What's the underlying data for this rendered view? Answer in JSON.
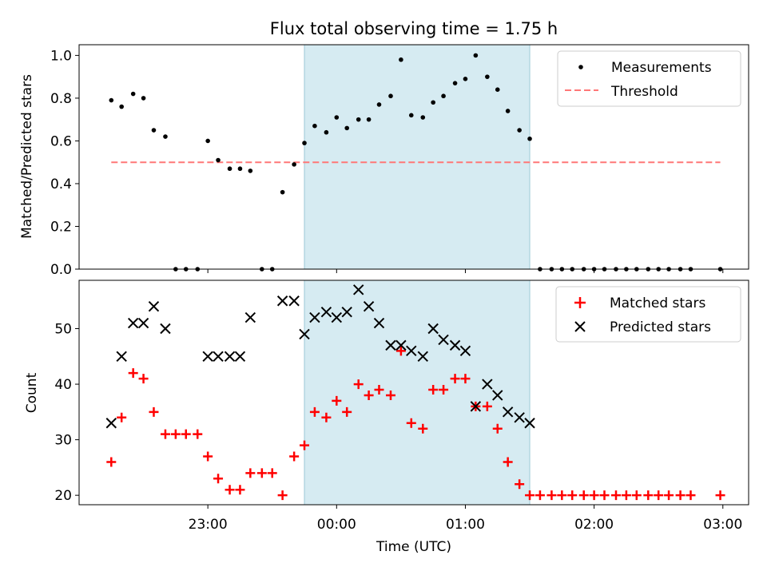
{
  "chart_data": [
    {
      "type": "scatter",
      "title": "Flux total observing time = 1.75 h",
      "xlabel": "",
      "ylabel": "Matched/Predicted stars",
      "ylim": [
        0,
        1.05
      ],
      "xlim_hours": [
        -2.0,
        3.2
      ],
      "yticks": [
        0,
        0.2,
        0.4,
        0.6,
        0.8,
        1.0
      ],
      "ytick_labels": [
        "0.0",
        "0.2",
        "0.4",
        "0.6",
        "0.8",
        "1.0"
      ],
      "shaded_region_hours": [
        -0.25,
        1.5
      ],
      "shade_color": "#add8e6",
      "legend_position": "top-right",
      "legend": [
        "Measurements",
        "Threshold"
      ],
      "threshold": {
        "name": "Threshold",
        "value": 0.5,
        "x_range_hours": [
          -1.75,
          2.98
        ],
        "color": "#ff7777"
      },
      "series": [
        {
          "name": "Measurements",
          "color": "#000000",
          "points": [
            [
              -1.75,
              0.79
            ],
            [
              -1.67,
              0.76
            ],
            [
              -1.58,
              0.82
            ],
            [
              -1.5,
              0.8
            ],
            [
              -1.42,
              0.65
            ],
            [
              -1.33,
              0.62
            ],
            [
              -1.25,
              0.0
            ],
            [
              -1.17,
              0.0
            ],
            [
              -1.08,
              0.0
            ],
            [
              -1.0,
              0.6
            ],
            [
              -0.92,
              0.51
            ],
            [
              -0.83,
              0.47
            ],
            [
              -0.75,
              0.47
            ],
            [
              -0.67,
              0.46
            ],
            [
              -0.58,
              0.0
            ],
            [
              -0.5,
              0.0
            ],
            [
              -0.42,
              0.36
            ],
            [
              -0.33,
              0.49
            ],
            [
              -0.25,
              0.59
            ],
            [
              -0.17,
              0.67
            ],
            [
              -0.08,
              0.64
            ],
            [
              0.0,
              0.71
            ],
            [
              0.08,
              0.66
            ],
            [
              0.17,
              0.7
            ],
            [
              0.25,
              0.7
            ],
            [
              0.33,
              0.77
            ],
            [
              0.42,
              0.81
            ],
            [
              0.5,
              0.98
            ],
            [
              0.58,
              0.72
            ],
            [
              0.67,
              0.71
            ],
            [
              0.75,
              0.78
            ],
            [
              0.83,
              0.81
            ],
            [
              0.92,
              0.87
            ],
            [
              1.0,
              0.89
            ],
            [
              1.08,
              1.0
            ],
            [
              1.17,
              0.9
            ],
            [
              1.25,
              0.84
            ],
            [
              1.33,
              0.74
            ],
            [
              1.42,
              0.65
            ],
            [
              1.5,
              0.61
            ],
            [
              1.58,
              0.0
            ],
            [
              1.67,
              0.0
            ],
            [
              1.75,
              0.0
            ],
            [
              1.83,
              0.0
            ],
            [
              1.92,
              0.0
            ],
            [
              2.0,
              0.0
            ],
            [
              2.08,
              0.0
            ],
            [
              2.17,
              0.0
            ],
            [
              2.25,
              0.0
            ],
            [
              2.33,
              0.0
            ],
            [
              2.42,
              0.0
            ],
            [
              2.5,
              0.0
            ],
            [
              2.58,
              0.0
            ],
            [
              2.67,
              0.0
            ],
            [
              2.75,
              0.0
            ],
            [
              2.98,
              0.0
            ]
          ]
        }
      ]
    },
    {
      "type": "scatter",
      "title": "",
      "xlabel": "Time (UTC)",
      "ylabel": "Count",
      "ylim": [
        18.3,
        58.7
      ],
      "xlim_hours": [
        -2.0,
        3.2
      ],
      "yticks": [
        20,
        30,
        40,
        50
      ],
      "ytick_labels": [
        "20",
        "30",
        "40",
        "50"
      ],
      "xticks_hours": [
        -1,
        0,
        1,
        2,
        3
      ],
      "xtick_labels": [
        "23:00",
        "00:00",
        "01:00",
        "02:00",
        "03:00"
      ],
      "shaded_region_hours": [
        -0.25,
        1.5
      ],
      "legend_position": "top-right",
      "legend": [
        "Matched stars",
        "Predicted stars"
      ],
      "series": [
        {
          "name": "Matched stars",
          "marker": "plus",
          "color": "#ff0000",
          "points": [
            [
              -1.75,
              26
            ],
            [
              -1.67,
              34
            ],
            [
              -1.58,
              42
            ],
            [
              -1.5,
              41
            ],
            [
              -1.42,
              35
            ],
            [
              -1.33,
              31
            ],
            [
              -1.25,
              31
            ],
            [
              -1.17,
              31
            ],
            [
              -1.08,
              31
            ],
            [
              -1.0,
              27
            ],
            [
              -0.92,
              23
            ],
            [
              -0.83,
              21
            ],
            [
              -0.75,
              21
            ],
            [
              -0.67,
              24
            ],
            [
              -0.58,
              24
            ],
            [
              -0.5,
              24
            ],
            [
              -0.42,
              20
            ],
            [
              -0.33,
              27
            ],
            [
              -0.25,
              29
            ],
            [
              -0.17,
              35
            ],
            [
              -0.08,
              34
            ],
            [
              0.0,
              37
            ],
            [
              0.08,
              35
            ],
            [
              0.17,
              40
            ],
            [
              0.25,
              38
            ],
            [
              0.33,
              39
            ],
            [
              0.42,
              38
            ],
            [
              0.5,
              46
            ],
            [
              0.58,
              33
            ],
            [
              0.67,
              32
            ],
            [
              0.75,
              39
            ],
            [
              0.83,
              39
            ],
            [
              0.92,
              41
            ],
            [
              1.0,
              41
            ],
            [
              1.08,
              36
            ],
            [
              1.17,
              36
            ],
            [
              1.25,
              32
            ],
            [
              1.33,
              26
            ],
            [
              1.42,
              22
            ],
            [
              1.5,
              20
            ],
            [
              1.58,
              20
            ],
            [
              1.67,
              20
            ],
            [
              1.75,
              20
            ],
            [
              1.83,
              20
            ],
            [
              1.92,
              20
            ],
            [
              2.0,
              20
            ],
            [
              2.08,
              20
            ],
            [
              2.17,
              20
            ],
            [
              2.25,
              20
            ],
            [
              2.33,
              20
            ],
            [
              2.42,
              20
            ],
            [
              2.5,
              20
            ],
            [
              2.58,
              20
            ],
            [
              2.67,
              20
            ],
            [
              2.75,
              20
            ],
            [
              2.98,
              20
            ]
          ]
        },
        {
          "name": "Predicted stars",
          "marker": "x",
          "color": "#000000",
          "points": [
            [
              -1.75,
              33
            ],
            [
              -1.67,
              45
            ],
            [
              -1.58,
              51
            ],
            [
              -1.5,
              51
            ],
            [
              -1.42,
              54
            ],
            [
              -1.33,
              50
            ],
            [
              -1.0,
              45
            ],
            [
              -0.92,
              45
            ],
            [
              -0.83,
              45
            ],
            [
              -0.75,
              45
            ],
            [
              -0.67,
              52
            ],
            [
              -0.42,
              55
            ],
            [
              -0.33,
              55
            ],
            [
              -0.25,
              49
            ],
            [
              -0.17,
              52
            ],
            [
              -0.08,
              53
            ],
            [
              0.0,
              52
            ],
            [
              0.08,
              53
            ],
            [
              0.17,
              57
            ],
            [
              0.25,
              54
            ],
            [
              0.33,
              51
            ],
            [
              0.42,
              47
            ],
            [
              0.5,
              47
            ],
            [
              0.58,
              46
            ],
            [
              0.67,
              45
            ],
            [
              0.75,
              50
            ],
            [
              0.83,
              48
            ],
            [
              0.92,
              47
            ],
            [
              1.0,
              46
            ],
            [
              1.08,
              36
            ],
            [
              1.17,
              40
            ],
            [
              1.25,
              38
            ],
            [
              1.33,
              35
            ],
            [
              1.42,
              34
            ],
            [
              1.5,
              33
            ]
          ]
        }
      ]
    }
  ]
}
